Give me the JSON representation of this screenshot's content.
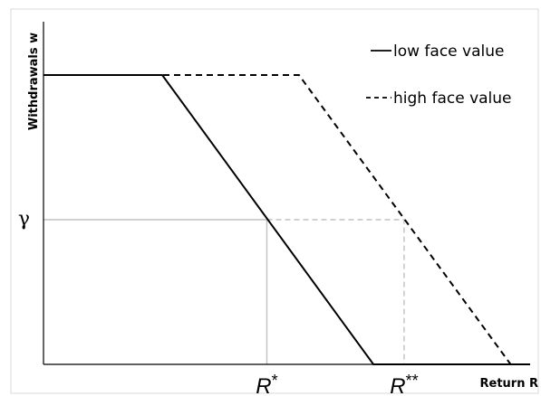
{
  "chart_data": {
    "type": "line",
    "title": "",
    "xlabel": "Return R",
    "ylabel": "Withdrawals w",
    "x_ticks": [
      {
        "label_base": "R",
        "label_sup": "*",
        "x": 0.459
      },
      {
        "label_base": "R",
        "label_sup": "**",
        "x": 0.741
      }
    ],
    "y_ticks": [
      {
        "label": "γ",
        "y": 0.5
      }
    ],
    "xlim": [
      0,
      1
    ],
    "ylim": [
      0,
      1
    ],
    "grid": false,
    "legend_position": "top-right",
    "series": [
      {
        "name": "low face value",
        "style": "solid",
        "color": "#000000",
        "points": [
          [
            0,
            1
          ],
          [
            0.244,
            1
          ],
          [
            0.678,
            0
          ],
          [
            1,
            0
          ]
        ]
      },
      {
        "name": "high face value",
        "style": "dashed",
        "color": "#000000",
        "points": [
          [
            0,
            1
          ],
          [
            0.525,
            1
          ],
          [
            0.96,
            0
          ]
        ]
      }
    ],
    "reference_lines": [
      {
        "style": "solid",
        "color": "#c0c0c0",
        "points": [
          [
            0,
            0.5
          ],
          [
            0.459,
            0.5
          ],
          [
            0.459,
            0
          ]
        ]
      },
      {
        "style": "dashed",
        "color": "#c0c0c0",
        "points": [
          [
            0.459,
            0.5
          ],
          [
            0.741,
            0.5
          ],
          [
            0.741,
            0
          ]
        ]
      }
    ]
  }
}
